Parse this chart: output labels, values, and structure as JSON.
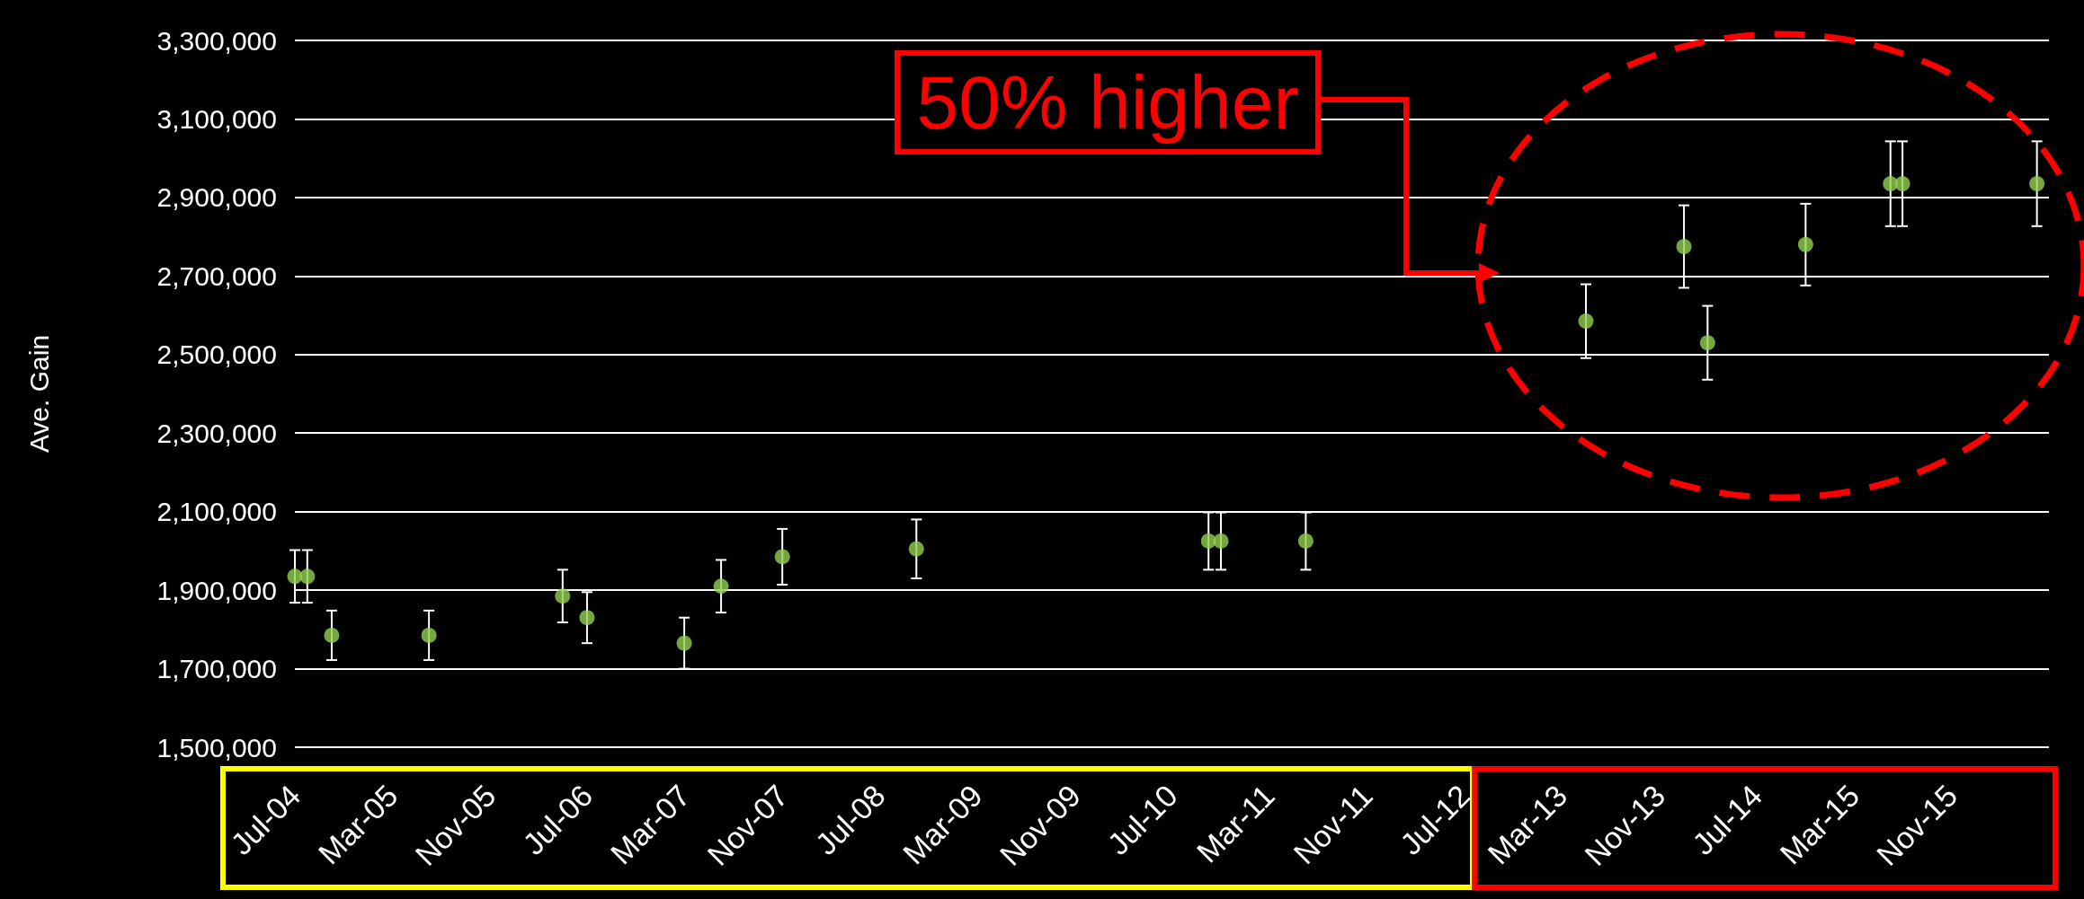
{
  "chart_data": {
    "type": "scatter",
    "ylabel": "Ave. Gain",
    "x": [
      "2004-07",
      "2004-08",
      "2004-10",
      "2005-06",
      "2006-05",
      "2006-07",
      "2007-03",
      "2007-06",
      "2007-11",
      "2008-10",
      "2010-10",
      "2010-11",
      "2011-06",
      "2013-05",
      "2014-01",
      "2014-03",
      "2014-11",
      "2015-06",
      "2015-07",
      "2016-06"
    ],
    "series": [
      {
        "color": "#92d050",
        "values": [
          1935000,
          1935000,
          1785000,
          1785000,
          1885000,
          1830000,
          1765000,
          1910000,
          1985000,
          2005000,
          2025000,
          2025000,
          2025000,
          2585000,
          2775000,
          2530000,
          2780000,
          2935000,
          2935000,
          2935000
        ],
        "errors": [
          67000,
          67000,
          63000,
          63000,
          67000,
          65000,
          65000,
          67000,
          71000,
          75000,
          73000,
          73000,
          73000,
          94000,
          105000,
          94000,
          104000,
          108000,
          108000,
          108000
        ]
      }
    ],
    "xlim": [
      "2004-07",
      "2016-07"
    ],
    "xticks": [
      {
        "value": "2004-07",
        "label": "Jul-04"
      },
      {
        "value": "2005-03",
        "label": "Mar-05"
      },
      {
        "value": "2005-11",
        "label": "Nov-05"
      },
      {
        "value": "2006-07",
        "label": "Jul-06"
      },
      {
        "value": "2007-03",
        "label": "Mar-07"
      },
      {
        "value": "2007-11",
        "label": "Nov-07"
      },
      {
        "value": "2008-07",
        "label": "Jul-08"
      },
      {
        "value": "2009-03",
        "label": "Mar-09"
      },
      {
        "value": "2009-11",
        "label": "Nov-09"
      },
      {
        "value": "2010-07",
        "label": "Jul-10"
      },
      {
        "value": "2011-03",
        "label": "Mar-11"
      },
      {
        "value": "2011-11",
        "label": "Nov-11"
      },
      {
        "value": "2012-07",
        "label": "Jul-12"
      },
      {
        "value": "2013-03",
        "label": "Mar-13"
      },
      {
        "value": "2013-11",
        "label": "Nov-13"
      },
      {
        "value": "2014-07",
        "label": "Jul-14"
      },
      {
        "value": "2015-03",
        "label": "Mar-15"
      },
      {
        "value": "2015-11",
        "label": "Nov-15"
      }
    ],
    "ylim": [
      1500000,
      3300000
    ],
    "yticks": [
      {
        "value": 1500000,
        "label": "1,500,000"
      },
      {
        "value": 1700000,
        "label": "1,700,000"
      },
      {
        "value": 1900000,
        "label": "1,900,000"
      },
      {
        "value": 2100000,
        "label": "2,100,000"
      },
      {
        "value": 2300000,
        "label": "2,300,000"
      },
      {
        "value": 2500000,
        "label": "2,500,000"
      },
      {
        "value": 2700000,
        "label": "2,700,000"
      },
      {
        "value": 2900000,
        "label": "2,900,000"
      },
      {
        "value": 3100000,
        "label": "3,100,000"
      },
      {
        "value": 3300000,
        "label": "3,300,000"
      }
    ],
    "grid": "y",
    "marker": "circle",
    "annotations": [
      "50% higher"
    ]
  }
}
